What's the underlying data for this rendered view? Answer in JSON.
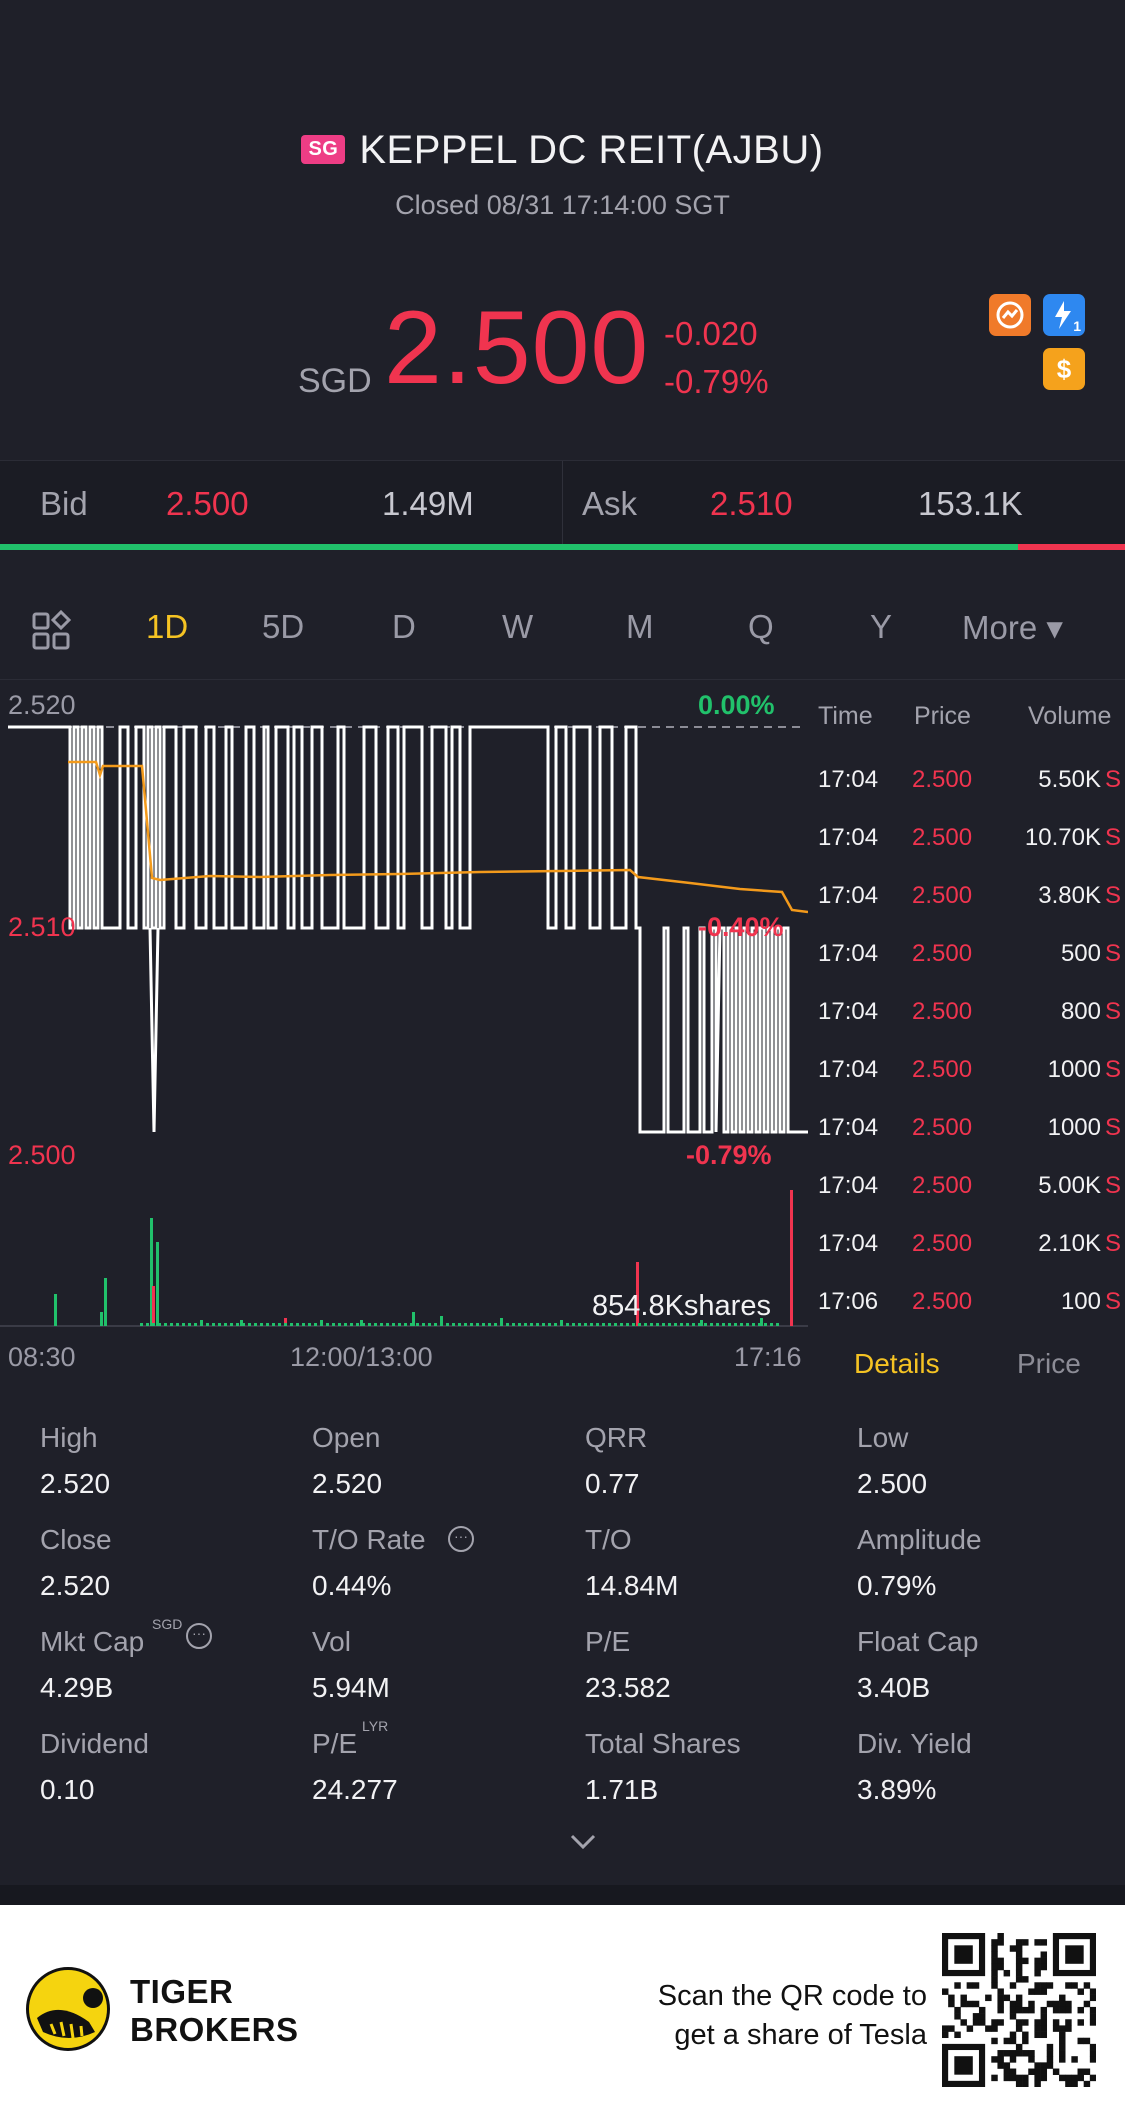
{
  "header": {
    "exchange_badge": "SG",
    "title": "KEPPEL DC REIT(AJBU)",
    "status": "Closed 08/31 17:14:00 SGT"
  },
  "quote": {
    "currency": "SGD",
    "price": "2.500",
    "change": "-0.020",
    "change_pct": "-0.79%",
    "icons": [
      "price-alert-icon",
      "flash-icon",
      "dollar-icon"
    ],
    "flash_badge": "1",
    "dollar_symbol": "$"
  },
  "bidask": {
    "bid_label": "Bid",
    "bid_price": "2.500",
    "bid_size": "1.49M",
    "ask_label": "Ask",
    "ask_price": "2.510",
    "ask_size": "153.1K",
    "bid_ratio": 0.905
  },
  "tabs": [
    "1D",
    "5D",
    "D",
    "W",
    "M",
    "Q",
    "Y",
    "More ▾"
  ],
  "active_tab": "1D",
  "chart_data": {
    "type": "line",
    "y_labels": [
      "2.520",
      "2.510",
      "2.500"
    ],
    "pct_labels": [
      "0.00%",
      "-0.40%",
      "-0.79%"
    ],
    "x_labels": [
      "08:30",
      "12:00/13:00",
      "17:16"
    ],
    "volume_label": "854.8Kshares",
    "series": [
      {
        "values_note": "intraday price oscillating between 2.500 and 2.520"
      }
    ]
  },
  "time_sales": {
    "headers": [
      "Time",
      "Price",
      "Volume"
    ],
    "rows": [
      {
        "time": "17:04",
        "price": "2.500",
        "volume": "5.50K",
        "side": "S"
      },
      {
        "time": "17:04",
        "price": "2.500",
        "volume": "10.70K",
        "side": "S"
      },
      {
        "time": "17:04",
        "price": "2.500",
        "volume": "3.80K",
        "side": "S"
      },
      {
        "time": "17:04",
        "price": "2.500",
        "volume": "500",
        "side": "S"
      },
      {
        "time": "17:04",
        "price": "2.500",
        "volume": "800",
        "side": "S"
      },
      {
        "time": "17:04",
        "price": "2.500",
        "volume": "1000",
        "side": "S"
      },
      {
        "time": "17:04",
        "price": "2.500",
        "volume": "1000",
        "side": "S"
      },
      {
        "time": "17:04",
        "price": "2.500",
        "volume": "5.00K",
        "side": "S"
      },
      {
        "time": "17:04",
        "price": "2.500",
        "volume": "2.10K",
        "side": "S"
      },
      {
        "time": "17:06",
        "price": "2.500",
        "volume": "100",
        "side": "S"
      }
    ],
    "tab_details": "Details",
    "tab_price": "Price"
  },
  "stats": [
    {
      "label": "High",
      "value": "2.520"
    },
    {
      "label": "Open",
      "value": "2.520"
    },
    {
      "label": "QRR",
      "value": "0.77"
    },
    {
      "label": "Low",
      "value": "2.500"
    },
    {
      "label": "Close",
      "value": "2.520"
    },
    {
      "label": "T/O Rate",
      "value": "0.44%"
    },
    {
      "label": "T/O",
      "value": "14.84M"
    },
    {
      "label": "Amplitude",
      "value": "0.79%"
    },
    {
      "label": "Mkt Cap",
      "value": "4.29B",
      "sup": "SGD"
    },
    {
      "label": "Vol",
      "value": "5.94M"
    },
    {
      "label": "P/E",
      "value": "23.582"
    },
    {
      "label": "Float Cap",
      "value": "3.40B"
    },
    {
      "label": "Dividend",
      "value": "0.10"
    },
    {
      "label": "P/E",
      "value": "24.277",
      "sup": "LYR"
    },
    {
      "label": "Total Shares",
      "value": "1.71B"
    },
    {
      "label": "Div. Yield",
      "value": "3.89%"
    }
  ],
  "footer": {
    "brand_line1": "TIGER",
    "brand_line2": "BROKERS",
    "scan_line1": "Scan the QR code to",
    "scan_line2": "get a share of Tesla"
  },
  "colors": {
    "up": "#21c16b",
    "down": "#f0344f",
    "accent": "#f5c323",
    "avg_line": "#f39a1b"
  }
}
